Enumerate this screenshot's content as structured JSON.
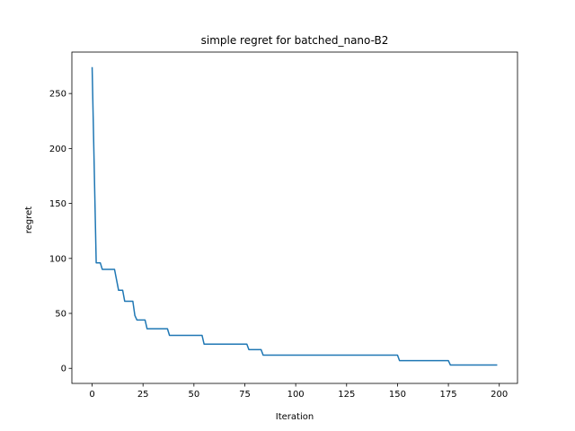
{
  "chart_data": {
    "type": "line",
    "title": "simple regret for batched_nano-B2",
    "xlabel": "Iteration",
    "ylabel": "regret",
    "xlim": [
      -9.95,
      208.95
    ],
    "ylim": [
      -13.7,
      287.7
    ],
    "xticks": [
      0,
      25,
      50,
      75,
      100,
      125,
      150,
      175,
      200
    ],
    "yticks": [
      0,
      50,
      100,
      150,
      200,
      250
    ],
    "grid": false,
    "line_color": "#1f77b4",
    "series": [
      {
        "step_points": [
          [
            0,
            274
          ],
          [
            2,
            96
          ],
          [
            4,
            96
          ],
          [
            5,
            90
          ],
          [
            11,
            90
          ],
          [
            13,
            71
          ],
          [
            15,
            71
          ],
          [
            16,
            61
          ],
          [
            20,
            61
          ],
          [
            21,
            48
          ],
          [
            22,
            44
          ],
          [
            26,
            44
          ],
          [
            27,
            36
          ],
          [
            37,
            36
          ],
          [
            38,
            30
          ],
          [
            54,
            30
          ],
          [
            55,
            22
          ],
          [
            76,
            22
          ],
          [
            77,
            17
          ],
          [
            83,
            17
          ],
          [
            84,
            12
          ],
          [
            150,
            12
          ],
          [
            151,
            7
          ],
          [
            175,
            7
          ],
          [
            176,
            3
          ],
          [
            199,
            3
          ]
        ]
      }
    ]
  }
}
